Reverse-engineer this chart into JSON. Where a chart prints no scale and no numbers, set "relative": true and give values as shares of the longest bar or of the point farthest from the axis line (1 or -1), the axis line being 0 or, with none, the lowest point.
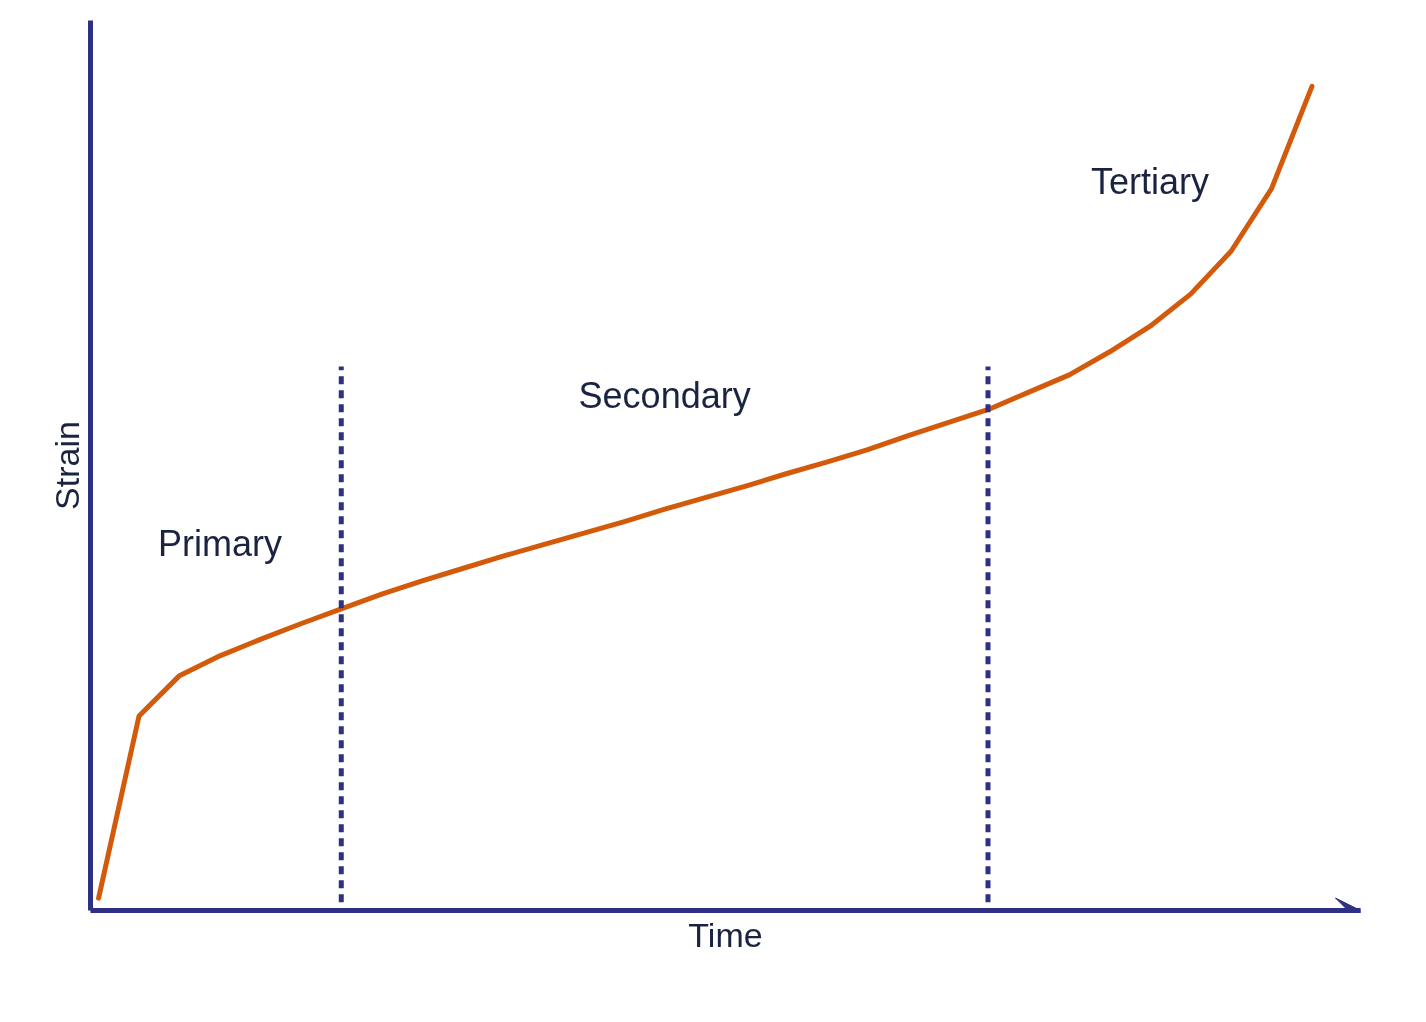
{
  "chart_data": {
    "type": "line",
    "relative": true,
    "xlabel": "Time",
    "ylabel": "Strain",
    "tick_labels": false,
    "line_style": "solid",
    "categories": [
      null,
      null,
      null,
      null,
      null,
      null,
      null,
      null,
      null,
      null,
      null,
      null,
      null,
      null,
      null,
      null,
      null,
      null,
      null,
      null,
      null,
      null,
      null,
      null,
      null,
      null,
      null,
      null,
      null,
      null,
      null
    ],
    "series": [
      {
        "color": "#d35a0b",
        "values": [
          0.015,
          0.236,
          0.285,
          0.309,
          0.329,
          0.348,
          0.366,
          0.384,
          0.4,
          0.415,
          0.43,
          0.444,
          0.458,
          0.472,
          0.487,
          0.501,
          0.515,
          0.53,
          0.544,
          0.559,
          0.576,
          0.592,
          0.608,
          0.629,
          0.65,
          0.678,
          0.709,
          0.748,
          0.8,
          0.876,
          1.0
        ]
      }
    ],
    "annotations": [
      "Primary",
      "Secondary",
      "Tertiary"
    ]
  }
}
